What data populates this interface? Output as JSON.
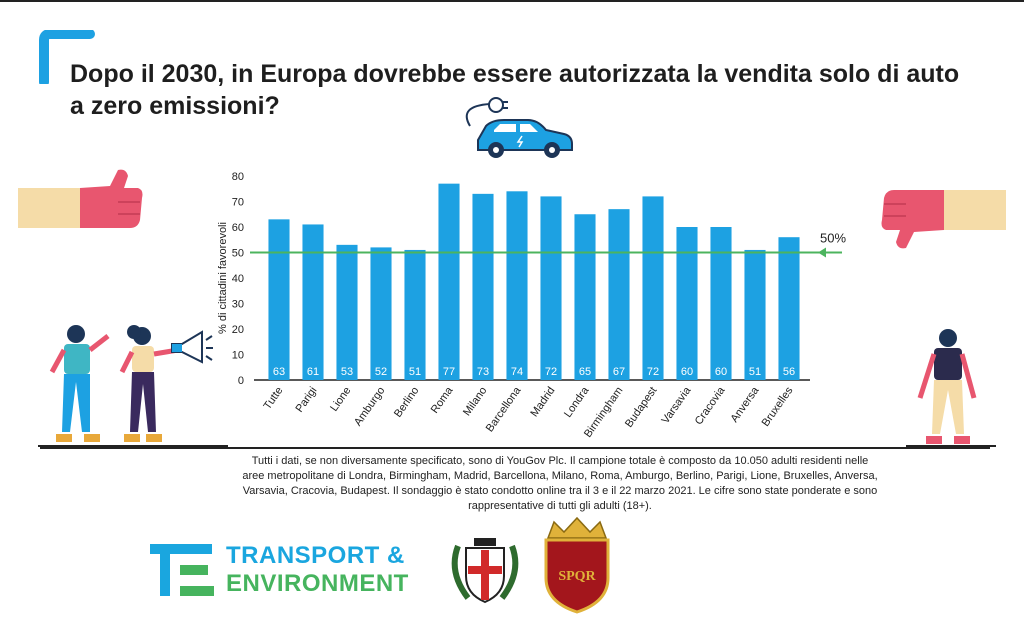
{
  "header": {
    "title_line1": "Dopo il 2030, in Europa dovrebbe essere autorizzata la vendita solo di auto",
    "title_line2": "a zero emissioni?"
  },
  "chart_data": {
    "type": "bar",
    "ylabel": "% di cittadini favorevoli",
    "ylim": [
      0,
      80
    ],
    "yticks": [
      0,
      10,
      20,
      30,
      40,
      50,
      60,
      70,
      80
    ],
    "categories": [
      "Tutte",
      "Parigi",
      "Lione",
      "Amburgo",
      "Berlino",
      "Roma",
      "Milano",
      "Barcellona",
      "Madrid",
      "Londra",
      "Birmingham",
      "Budapest",
      "Varsavia",
      "Cracovia",
      "Anversa",
      "Bruxelles"
    ],
    "values": [
      63,
      61,
      53,
      52,
      51,
      77,
      73,
      74,
      72,
      65,
      67,
      72,
      60,
      60,
      51,
      56
    ],
    "reference_line": {
      "value": 50,
      "label": "50%"
    },
    "bar_color": "#1da1e2",
    "line_color": "#4cb45e",
    "grid": false
  },
  "footer": {
    "note": "Tutti i dati, se non diversamente specificato, sono di YouGov Plc. Il campione totale è composto da 10.050 adulti residenti nelle aree metropolitane di Londra, Birmingham, Madrid, Barcellona, Milano, Roma, Amburgo, Berlino, Parigi, Lione, Bruxelles, Anversa, Varsavia, Cracovia, Budapest. Il sondaggio è stato condotto online tra il 3 e il 22 marzo 2021. Le cifre sono state ponderate e sono rappresentative di tutti gli adulti (18+)."
  },
  "logos": {
    "te_line1": "TRANSPORT &",
    "te_line2": "ENVIRONMENT",
    "rome_crest_text": "SPQR"
  },
  "icons": {
    "car": "electric-car-icon",
    "thumb_up": "thumbs-up-icon",
    "thumb_down": "thumbs-down-icon",
    "megaphone": "megaphone-icon"
  },
  "colors": {
    "accent_blue": "#1da1e2",
    "accent_green": "#46b45e",
    "hand_pink": "#e8566f",
    "skin": "#f5dca8"
  }
}
